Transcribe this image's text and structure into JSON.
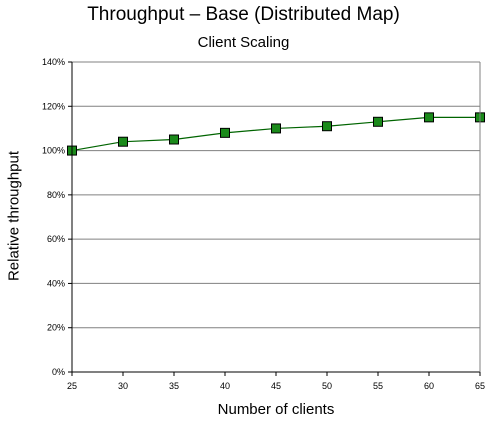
{
  "chart_data": {
    "type": "line",
    "title": "Throughput – Base (Distributed Map)",
    "subtitle": "Client Scaling",
    "xlabel": "Number of clients",
    "ylabel": "Relative throughput",
    "x": [
      25,
      30,
      35,
      40,
      45,
      50,
      55,
      60,
      65
    ],
    "x_tick_labels": [
      "25",
      "30",
      "35",
      "40",
      "45",
      "50",
      "55",
      "60",
      "65"
    ],
    "series": [
      {
        "values": [
          100,
          104,
          105,
          108,
          110,
          111,
          113,
          115,
          115
        ]
      }
    ],
    "xlim": [
      25,
      65
    ],
    "ylim": [
      0,
      140
    ],
    "y_ticks": [
      0,
      20,
      40,
      60,
      80,
      100,
      120,
      140
    ],
    "y_tick_labels": [
      "0%",
      "20%",
      "40%",
      "60%",
      "80%",
      "100%",
      "120%",
      "140%"
    ],
    "grid": "horizontal",
    "legend": "none",
    "line_color": "#006400",
    "marker_color": "#1a8a1a",
    "marker_edge_color": "#000000",
    "gridline_color": "#808080"
  }
}
